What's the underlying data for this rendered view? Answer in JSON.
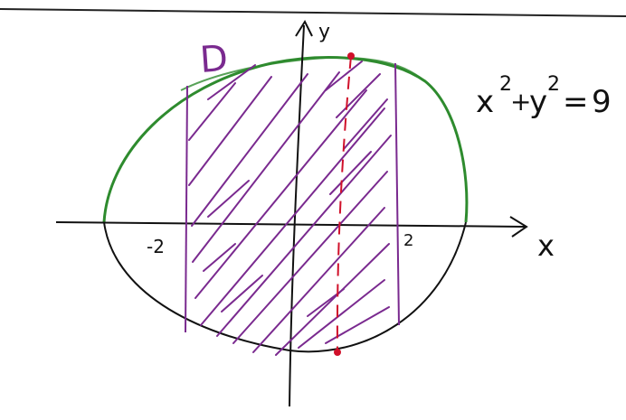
{
  "labels": {
    "region": "D",
    "y_axis": "y",
    "x_axis": "x",
    "tick_left": "-2",
    "tick_right": "2",
    "equation_base_x": "x",
    "equation_exp_x": "2",
    "equation_plus": "+",
    "equation_base_y": "y",
    "equation_exp_y": "2",
    "equation_eq": "=",
    "equation_rhs": "9"
  },
  "colors": {
    "ink": "#111111",
    "region_purple": "#7a2a8f",
    "upper_arc_green": "#2e8b2e",
    "guide_red": "#d0102a"
  }
}
